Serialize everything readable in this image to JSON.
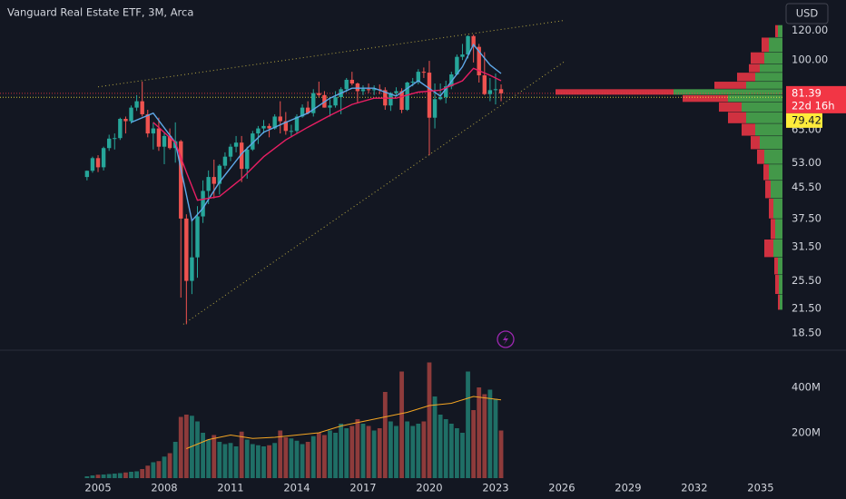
{
  "chart_data": [
    {
      "type": "candlestick",
      "title": "Vanguard Real Estate ETF, 3M, Arca",
      "currency": "USD",
      "log_scale": true,
      "up_color": "#26a69a",
      "down_color": "#ef5350",
      "x": [
        2004.5,
        2004.75,
        2005,
        2005.25,
        2005.5,
        2005.75,
        2006,
        2006.25,
        2006.5,
        2006.75,
        2007,
        2007.25,
        2007.5,
        2007.75,
        2008,
        2008.25,
        2008.5,
        2008.75,
        2009,
        2009.25,
        2009.5,
        2009.75,
        2010,
        2010.25,
        2010.5,
        2010.75,
        2011,
        2011.25,
        2011.5,
        2011.75,
        2012,
        2012.25,
        2012.5,
        2012.75,
        2013,
        2013.25,
        2013.5,
        2013.75,
        2014,
        2014.25,
        2014.5,
        2014.75,
        2015,
        2015.25,
        2015.5,
        2015.75,
        2016,
        2016.25,
        2016.5,
        2016.75,
        2017,
        2017.25,
        2017.5,
        2017.75,
        2018,
        2018.25,
        2018.5,
        2018.75,
        2019,
        2019.25,
        2019.5,
        2019.75,
        2020,
        2020.25,
        2020.5,
        2020.75,
        2021,
        2021.25,
        2021.5,
        2021.75,
        2022,
        2022.25,
        2022.5,
        2022.75,
        2023,
        2023.25
      ],
      "open": [
        48.5,
        50.4,
        54.5,
        51.5,
        58.0,
        61.5,
        61.7,
        69.5,
        68.5,
        74.5,
        77.5,
        71.5,
        63.5,
        65.5,
        58.5,
        62.5,
        58.0,
        60.5,
        37.5,
        25.5,
        29.5,
        38.0,
        44.5,
        48.5,
        46.5,
        52.0,
        55.0,
        58.5,
        60.0,
        51.0,
        57.5,
        63.5,
        65.5,
        66.5,
        65.5,
        70.5,
        68.5,
        64.5,
        64.5,
        70.5,
        74.5,
        72.0,
        81.5,
        80.5,
        74.5,
        75.5,
        79.5,
        83.5,
        88.5,
        86.5,
        82.5,
        83.5,
        83.0,
        83.5,
        83.0,
        75.5,
        81.5,
        82.5,
        73.5,
        87.0,
        87.5,
        93.0,
        92.5,
        70.0,
        78.5,
        79.5,
        85.0,
        91.5,
        102.0,
        103.5,
        116.0,
        108.5,
        91.0,
        81.0,
        83.0,
        83.5
      ],
      "high": [
        50.5,
        55.0,
        55.5,
        58.5,
        63.0,
        63.5,
        70.0,
        70.5,
        75.5,
        80.5,
        87.5,
        73.5,
        68.0,
        70.0,
        64.0,
        65.5,
        68.0,
        61.0,
        38.5,
        37.0,
        40.5,
        47.5,
        50.5,
        54.0,
        52.5,
        56.5,
        59.5,
        62.5,
        62.5,
        58.5,
        64.5,
        66.5,
        69.0,
        67.5,
        71.5,
        77.5,
        72.5,
        67.0,
        71.5,
        76.0,
        77.5,
        83.5,
        87.5,
        82.5,
        78.5,
        82.5,
        84.5,
        89.5,
        93.0,
        87.0,
        85.5,
        86.5,
        85.5,
        86.0,
        84.5,
        82.0,
        84.5,
        84.0,
        87.5,
        89.5,
        94.5,
        95.5,
        99.5,
        86.5,
        86.5,
        88.0,
        93.0,
        103.5,
        110.5,
        116.5,
        117.0,
        110.5,
        105.0,
        89.5,
        92.0,
        86.0
      ],
      "low": [
        47.5,
        49.8,
        50.0,
        50.5,
        57.0,
        57.5,
        61.0,
        63.5,
        67.5,
        73.0,
        70.5,
        62.0,
        57.5,
        57.0,
        52.5,
        57.5,
        53.0,
        23.0,
        19.5,
        23.5,
        26.0,
        36.5,
        41.0,
        42.5,
        43.5,
        51.0,
        53.5,
        56.5,
        47.0,
        48.0,
        57.0,
        59.5,
        63.5,
        62.0,
        65.0,
        63.5,
        63.0,
        62.0,
        63.5,
        70.0,
        71.5,
        70.5,
        79.5,
        74.5,
        70.5,
        74.5,
        71.5,
        82.0,
        85.5,
        76.5,
        80.5,
        81.5,
        80.5,
        81.0,
        73.5,
        73.0,
        80.0,
        72.0,
        73.0,
        85.0,
        86.0,
        89.5,
        55.5,
        65.5,
        78.0,
        76.5,
        83.5,
        91.0,
        100.0,
        101.0,
        98.5,
        87.0,
        80.5,
        77.5,
        76.0,
        77.5
      ],
      "close": [
        50.4,
        54.5,
        51.5,
        58.0,
        61.5,
        61.7,
        69.5,
        68.5,
        74.5,
        77.5,
        71.5,
        63.5,
        65.5,
        58.5,
        62.5,
        58.0,
        60.5,
        37.5,
        25.5,
        29.5,
        38.0,
        44.5,
        48.5,
        46.5,
        52.0,
        55.0,
        58.5,
        60.0,
        51.0,
        57.5,
        63.5,
        65.5,
        66.5,
        65.5,
        70.5,
        68.5,
        64.5,
        64.5,
        70.5,
        74.5,
        72.0,
        81.5,
        80.5,
        74.5,
        75.5,
        79.5,
        83.5,
        88.5,
        86.5,
        82.5,
        83.5,
        83.0,
        83.5,
        83.0,
        75.5,
        81.5,
        82.5,
        73.5,
        87.0,
        87.5,
        93.0,
        92.5,
        70.0,
        78.5,
        79.5,
        85.0,
        91.5,
        102.0,
        103.5,
        116.0,
        108.5,
        91.0,
        81.0,
        83.0,
        83.5,
        81.39
      ],
      "lines": [
        {
          "color": "#5fa8e8",
          "x": [
            2006.5,
            2007.5,
            2008.5,
            2009.25,
            2009.75,
            2010.5,
            2011.5,
            2012.5,
            2013.5,
            2014.5,
            2015.5,
            2016.5,
            2017.5,
            2018.5,
            2019.5,
            2020.5,
            2021.5,
            2022,
            2022.75,
            2023.25
          ],
          "values": [
            68,
            72,
            60,
            37,
            40,
            47,
            56,
            64,
            68,
            72,
            79,
            84,
            84,
            80,
            88,
            80,
            96,
            110,
            97,
            92
          ]
        },
        {
          "color": "#e91e63",
          "x": [
            2007.5,
            2008.5,
            2009,
            2009.5,
            2010.5,
            2011.5,
            2012.5,
            2013.5,
            2014.5,
            2015.5,
            2016.5,
            2017.5,
            2018.5,
            2019.5,
            2020.5,
            2021.5,
            2022,
            2022.75,
            2023.25
          ],
          "values": [
            68,
            60,
            50,
            42,
            43,
            48,
            55,
            61,
            66,
            71,
            76,
            79,
            79,
            82,
            83,
            88,
            95,
            91,
            88
          ]
        }
      ],
      "trendlines": [
        {
          "color": "#b5a642",
          "x": [
            2005.0,
            2026.04
          ],
          "values": [
            84.7,
            127.6
          ]
        },
        {
          "color": "#b5a642",
          "x": [
            2008.86,
            2026.12
          ],
          "values": [
            19.5,
            99.1
          ]
        }
      ],
      "last_price": {
        "value": 81.39,
        "color": "#f23645",
        "countdown": "22d 16h"
      },
      "prev_close": {
        "value": 79.42,
        "color": "#ffeb3b"
      },
      "volume_profile": {
        "up_color": "#4caf50",
        "down_color": "#f23645",
        "prices": [
          120,
          110,
          100,
          95,
          90,
          85,
          82,
          79,
          75,
          70,
          65,
          60,
          55,
          50,
          45,
          40,
          35,
          31,
          28,
          25,
          22
        ],
        "up": [
          5,
          15,
          20,
          25,
          30,
          40,
          120,
          60,
          45,
          40,
          30,
          25,
          20,
          15,
          13,
          10,
          8,
          10,
          5,
          4,
          3
        ],
        "down": [
          3,
          8,
          15,
          12,
          20,
          35,
          130,
          50,
          25,
          20,
          15,
          10,
          8,
          6,
          6,
          5,
          5,
          10,
          4,
          4,
          2
        ]
      },
      "xlim": [
        2000.56,
        2035.99
      ],
      "ylim": [
        16.7,
        145
      ],
      "yticks": [
        {
          "value": 120,
          "label": "120.00"
        },
        {
          "value": 100,
          "label": "100.00"
        },
        {
          "value": 65,
          "label": "65.00"
        },
        {
          "value": 53,
          "label": "53.00"
        },
        {
          "value": 45.5,
          "label": "45.50"
        },
        {
          "value": 37.5,
          "label": "37.50"
        },
        {
          "value": 31.5,
          "label": "31.50"
        },
        {
          "value": 25.5,
          "label": "25.50"
        },
        {
          "value": 21.5,
          "label": "21.50"
        },
        {
          "value": 18.5,
          "label": "18.50"
        }
      ]
    },
    {
      "type": "bar",
      "up_color": "#1f6f66",
      "down_color": "#8e3b3b",
      "values": [
        8000000,
        12000000,
        15000000,
        16000000,
        18000000,
        20000000,
        22000000,
        25000000,
        28000000,
        30000000,
        40000000,
        55000000,
        70000000,
        75000000,
        95000000,
        110000000,
        160000000,
        270000000,
        280000000,
        275000000,
        250000000,
        200000000,
        170000000,
        190000000,
        160000000,
        150000000,
        155000000,
        140000000,
        205000000,
        170000000,
        150000000,
        145000000,
        140000000,
        145000000,
        155000000,
        210000000,
        180000000,
        175000000,
        165000000,
        150000000,
        160000000,
        185000000,
        200000000,
        190000000,
        210000000,
        200000000,
        240000000,
        220000000,
        230000000,
        260000000,
        240000000,
        230000000,
        210000000,
        220000000,
        380000000,
        250000000,
        230000000,
        470000000,
        250000000,
        230000000,
        240000000,
        250000000,
        510000000,
        360000000,
        280000000,
        260000000,
        240000000,
        220000000,
        200000000,
        470000000,
        300000000,
        400000000,
        370000000,
        390000000,
        350000000,
        210000000
      ],
      "ma": {
        "color": "#f5a623",
        "x": [
          2009,
          2010,
          2011,
          2012,
          2013,
          2014,
          2015,
          2016,
          2017,
          2018,
          2019,
          2020,
          2021,
          2022,
          2023.25
        ],
        "values": [
          130000000,
          170000000,
          190000000,
          175000000,
          180000000,
          190000000,
          200000000,
          230000000,
          250000000,
          270000000,
          290000000,
          320000000,
          330000000,
          360000000,
          345000000
        ]
      },
      "xlim": [
        2000.56,
        2035.99
      ],
      "xticks": [
        2005,
        2008,
        2011,
        2014,
        2017,
        2020,
        2023,
        2026,
        2029,
        2032,
        2035
      ],
      "ylim": [
        0,
        556000000
      ],
      "yticks": [
        {
          "value": 200000000,
          "label": "200M"
        },
        {
          "value": 400000000,
          "label": "400M"
        }
      ]
    }
  ]
}
